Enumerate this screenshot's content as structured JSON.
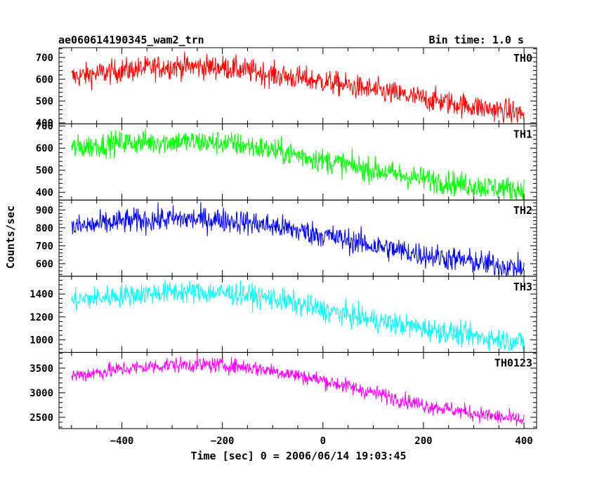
{
  "header": {
    "title": "ae060614190345_wam2_trn",
    "bin_time": "Bin time: 1.0 s"
  },
  "chart_data": {
    "type": "line",
    "xlabel": "Time [sec] 0 = 2006/06/14 19:03:45",
    "ylabel": "Counts/sec",
    "xlim": [
      -525,
      425
    ],
    "x_ticks": [
      -400,
      -200,
      0,
      200,
      400
    ],
    "x_tick_labels": [
      "−400",
      "−200",
      "0",
      "200",
      "400"
    ],
    "x_range": [
      -500,
      400
    ],
    "panels": [
      {
        "name": "TH0",
        "color": "#ff0000",
        "ylim": [
          395,
          745
        ],
        "y_ticks": [
          400,
          500,
          600,
          700
        ],
        "trend": [
          [
            -500,
            610
          ],
          [
            -400,
            640
          ],
          [
            -300,
            660
          ],
          [
            -200,
            655
          ],
          [
            -150,
            640
          ],
          [
            -100,
            620
          ],
          [
            0,
            590
          ],
          [
            100,
            550
          ],
          [
            200,
            510
          ],
          [
            300,
            475
          ],
          [
            400,
            440
          ]
        ],
        "noise": 28
      },
      {
        "name": "TH1",
        "color": "#00ff00",
        "ylim": [
          365,
          710
        ],
        "y_ticks": [
          400,
          500,
          600,
          700
        ],
        "trend": [
          [
            -500,
            600
          ],
          [
            -400,
            625
          ],
          [
            -300,
            630
          ],
          [
            -200,
            625
          ],
          [
            -150,
            610
          ],
          [
            -100,
            590
          ],
          [
            0,
            545
          ],
          [
            100,
            500
          ],
          [
            200,
            460
          ],
          [
            300,
            430
          ],
          [
            400,
            410
          ]
        ],
        "noise": 28
      },
      {
        "name": "TH2",
        "color": "#0000ff",
        "ylim": [
          530,
          955
        ],
        "y_ticks": [
          600,
          700,
          800,
          900
        ],
        "trend": [
          [
            -500,
            800
          ],
          [
            -400,
            835
          ],
          [
            -300,
            850
          ],
          [
            -200,
            845
          ],
          [
            -150,
            830
          ],
          [
            -100,
            810
          ],
          [
            0,
            760
          ],
          [
            100,
            700
          ],
          [
            200,
            650
          ],
          [
            300,
            610
          ],
          [
            400,
            570
          ]
        ],
        "noise": 35
      },
      {
        "name": "TH3",
        "color": "#00ffff",
        "ylim": [
          890,
          1555
        ],
        "y_ticks": [
          1000,
          1200,
          1400
        ],
        "trend": [
          [
            -500,
            1340
          ],
          [
            -400,
            1390
          ],
          [
            -300,
            1420
          ],
          [
            -200,
            1410
          ],
          [
            -150,
            1390
          ],
          [
            -100,
            1360
          ],
          [
            0,
            1260
          ],
          [
            100,
            1170
          ],
          [
            200,
            1100
          ],
          [
            300,
            1030
          ],
          [
            400,
            980
          ]
        ],
        "noise": 50
      },
      {
        "name": "TH0123",
        "color": "#ff00ff",
        "ylim": [
          2270,
          3820
        ],
        "y_ticks": [
          2500,
          3000,
          3500
        ],
        "trend": [
          [
            -500,
            3340
          ],
          [
            -400,
            3480
          ],
          [
            -300,
            3570
          ],
          [
            -200,
            3560
          ],
          [
            -150,
            3520
          ],
          [
            -100,
            3450
          ],
          [
            0,
            3250
          ],
          [
            100,
            3000
          ],
          [
            200,
            2750
          ],
          [
            300,
            2580
          ],
          [
            400,
            2430
          ]
        ],
        "noise": 80
      }
    ]
  }
}
